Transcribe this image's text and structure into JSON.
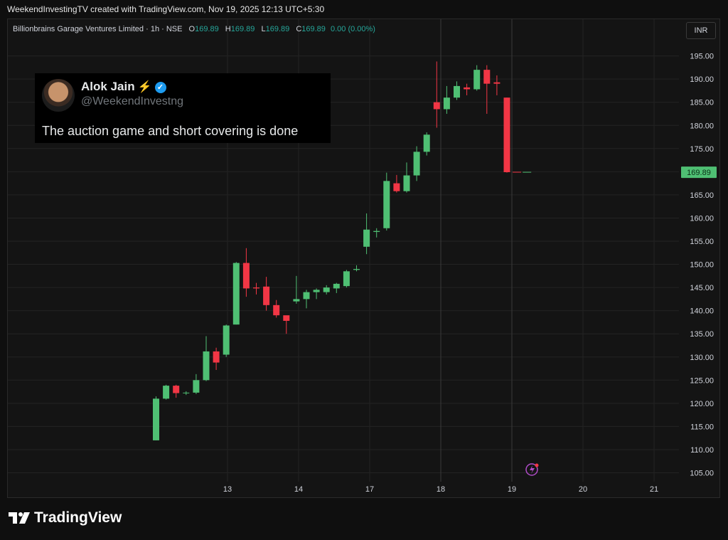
{
  "header": {
    "credit": "WeekendInvestingTV created with TradingView.com, Nov 19, 2025 12:13 UTC+5:30"
  },
  "legend": {
    "symbol": "Billionbrains Garage Ventures Limited · 1h · NSE",
    "o_label": "O",
    "o_value": "169.89",
    "h_label": "H",
    "h_value": "169.89",
    "l_label": "L",
    "l_value": "169.89",
    "c_label": "C",
    "c_value": "169.89",
    "change": "0.00 (0.00%)"
  },
  "currency": "INR",
  "tweet": {
    "name": "Alok Jain",
    "handle": "@WeekendInvestng",
    "text": "The auction game and short covering is done"
  },
  "brand": {
    "name": "TradingView"
  },
  "colors": {
    "up": "#4fbf73",
    "down": "#f23645",
    "grid": "#232323",
    "last_price_bg": "#4fbf73"
  },
  "chart_data": {
    "type": "candlestick",
    "ylim": [
      101,
      199
    ],
    "y_ticks": [
      "195.00",
      "190.00",
      "185.00",
      "180.00",
      "175.00",
      "170.00",
      "165.00",
      "160.00",
      "155.00",
      "150.00",
      "145.00",
      "140.00",
      "135.00",
      "130.00",
      "125.00",
      "120.00",
      "115.00",
      "110.00",
      "105.00"
    ],
    "x_labels": [
      "13",
      "14",
      "17",
      "18",
      "19",
      "20",
      "21"
    ],
    "last_price": "169.89",
    "candles": [
      {
        "o": 112.0,
        "h": 121.5,
        "l": 112.0,
        "c": 121.0
      },
      {
        "o": 121.0,
        "h": 124.0,
        "l": 120.8,
        "c": 123.8
      },
      {
        "o": 123.8,
        "h": 124.0,
        "l": 121.2,
        "c": 122.2
      },
      {
        "o": 122.2,
        "h": 122.6,
        "l": 121.8,
        "c": 122.3
      },
      {
        "o": 122.3,
        "h": 126.3,
        "l": 122.0,
        "c": 125.0
      },
      {
        "o": 125.0,
        "h": 134.5,
        "l": 124.8,
        "c": 131.2
      },
      {
        "o": 131.2,
        "h": 132.0,
        "l": 127.2,
        "c": 128.8
      },
      {
        "o": 130.5,
        "h": 137.0,
        "l": 130.0,
        "c": 136.8
      },
      {
        "o": 137.0,
        "h": 150.5,
        "l": 137.0,
        "c": 150.3
      },
      {
        "o": 150.3,
        "h": 153.5,
        "l": 143.0,
        "c": 144.8
      },
      {
        "o": 145.0,
        "h": 146.0,
        "l": 143.5,
        "c": 144.8
      },
      {
        "o": 145.2,
        "h": 147.3,
        "l": 140.0,
        "c": 141.2
      },
      {
        "o": 141.2,
        "h": 142.3,
        "l": 138.5,
        "c": 139.0
      },
      {
        "o": 139.0,
        "h": 138.9,
        "l": 135.0,
        "c": 137.8
      },
      {
        "o": 142.0,
        "h": 147.5,
        "l": 141.5,
        "c": 142.5
      },
      {
        "o": 142.5,
        "h": 144.5,
        "l": 140.5,
        "c": 144.0
      },
      {
        "o": 144.0,
        "h": 144.8,
        "l": 142.5,
        "c": 144.5
      },
      {
        "o": 144.0,
        "h": 145.5,
        "l": 143.5,
        "c": 145.0
      },
      {
        "o": 144.8,
        "h": 146.0,
        "l": 143.8,
        "c": 145.8
      },
      {
        "o": 145.3,
        "h": 148.8,
        "l": 145.0,
        "c": 148.5
      },
      {
        "o": 148.8,
        "h": 149.8,
        "l": 148.5,
        "c": 149.0
      },
      {
        "o": 153.8,
        "h": 161.0,
        "l": 152.2,
        "c": 157.5
      },
      {
        "o": 157.0,
        "h": 157.8,
        "l": 155.8,
        "c": 157.2
      },
      {
        "o": 157.8,
        "h": 169.8,
        "l": 157.3,
        "c": 168.0
      },
      {
        "o": 167.5,
        "h": 169.3,
        "l": 165.5,
        "c": 165.8
      },
      {
        "o": 165.8,
        "h": 172.0,
        "l": 165.5,
        "c": 169.2
      },
      {
        "o": 169.2,
        "h": 175.5,
        "l": 168.0,
        "c": 174.3
      },
      {
        "o": 174.3,
        "h": 178.5,
        "l": 173.5,
        "c": 178.0
      },
      {
        "o": 185.0,
        "h": 193.8,
        "l": 179.5,
        "c": 183.5
      },
      {
        "o": 183.5,
        "h": 188.5,
        "l": 182.5,
        "c": 186.0
      },
      {
        "o": 186.0,
        "h": 189.5,
        "l": 185.5,
        "c": 188.5
      },
      {
        "o": 188.2,
        "h": 189.0,
        "l": 186.5,
        "c": 187.8
      },
      {
        "o": 187.8,
        "h": 193.0,
        "l": 187.5,
        "c": 192.0
      },
      {
        "o": 192.0,
        "h": 193.0,
        "l": 182.5,
        "c": 189.0
      },
      {
        "o": 189.3,
        "h": 190.8,
        "l": 186.5,
        "c": 189.0
      },
      {
        "o": 186.0,
        "h": 186.0,
        "l": 169.8,
        "c": 169.9
      },
      {
        "o": 169.9,
        "h": 169.9,
        "l": 169.9,
        "c": 169.89
      },
      {
        "o": 169.89,
        "h": 169.89,
        "l": 169.89,
        "c": 169.89
      }
    ]
  }
}
